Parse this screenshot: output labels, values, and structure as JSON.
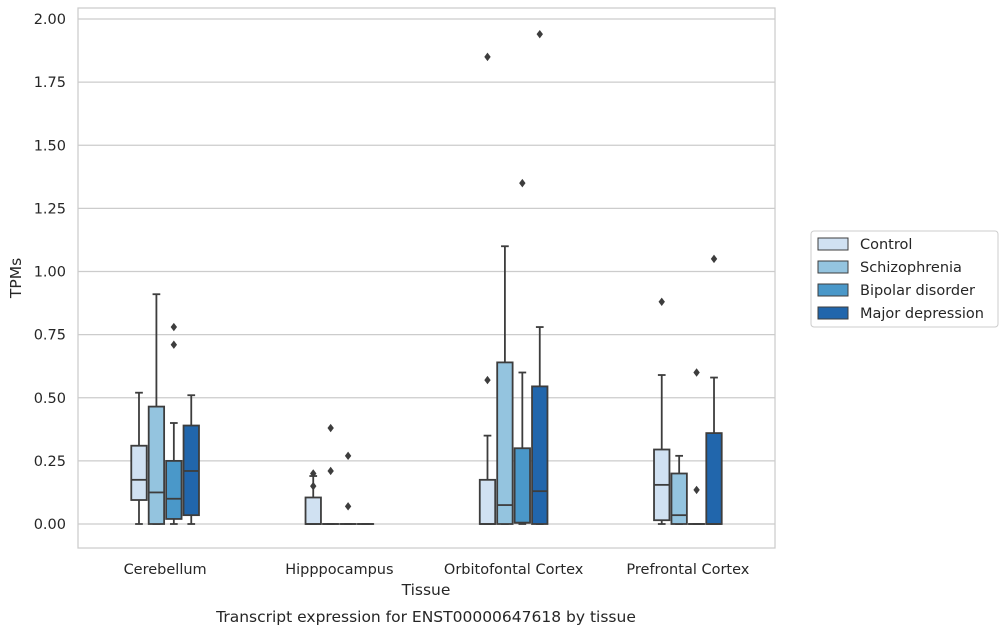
{
  "chart_data": {
    "type": "boxplot",
    "xlabel": "Tissue",
    "ylabel": "TPMs",
    "caption": "Transcript expression for ENST00000647618 by tissue",
    "ylim": [
      -0.1,
      2.02
    ],
    "yticks": [
      "0.00",
      "0.25",
      "0.50",
      "0.75",
      "1.00",
      "1.25",
      "1.50",
      "1.75",
      "2.00"
    ],
    "grid": "horizontal",
    "legend_position": "right-outside",
    "categories": [
      "Cerebellum",
      "Hipppocampus",
      "Orbitofontal Cortex",
      "Prefrontal Cortex"
    ],
    "series": [
      {
        "name": "Control",
        "color": "#d0e1f2",
        "boxes": [
          {
            "whislo": 0.0,
            "q1": 0.095,
            "med": 0.175,
            "q3": 0.31,
            "whishi": 0.52,
            "fliers": []
          },
          {
            "whislo": 0.0,
            "q1": 0.0,
            "med": 0.0,
            "q3": 0.105,
            "whishi": 0.19,
            "fliers": [
              0.15,
              0.2
            ]
          },
          {
            "whislo": 0.0,
            "q1": 0.0,
            "med": 0.0,
            "q3": 0.175,
            "whishi": 0.35,
            "fliers": [
              0.57,
              1.85
            ]
          },
          {
            "whislo": 0.0,
            "q1": 0.015,
            "med": 0.155,
            "q3": 0.295,
            "whishi": 0.59,
            "fliers": [
              0.88
            ]
          }
        ]
      },
      {
        "name": "Schizophrenia",
        "color": "#94c4df",
        "boxes": [
          {
            "whislo": 0.0,
            "q1": 0.0,
            "med": 0.125,
            "q3": 0.465,
            "whishi": 0.91,
            "fliers": []
          },
          {
            "whislo": 0.0,
            "q1": 0.0,
            "med": 0.0,
            "q3": 0.0,
            "whishi": 0.0,
            "fliers": [
              0.21,
              0.38
            ]
          },
          {
            "whislo": 0.0,
            "q1": 0.0,
            "med": 0.075,
            "q3": 0.64,
            "whishi": 1.1,
            "fliers": []
          },
          {
            "whislo": 0.0,
            "q1": 0.0,
            "med": 0.035,
            "q3": 0.2,
            "whishi": 0.27,
            "fliers": []
          }
        ]
      },
      {
        "name": "Bipolar disorder",
        "color": "#4a98c9",
        "boxes": [
          {
            "whislo": 0.0,
            "q1": 0.02,
            "med": 0.1,
            "q3": 0.25,
            "whishi": 0.4,
            "fliers": [
              0.71,
              0.78
            ]
          },
          {
            "whislo": 0.0,
            "q1": 0.0,
            "med": 0.0,
            "q3": 0.0,
            "whishi": 0.0,
            "fliers": [
              0.07,
              0.27
            ]
          },
          {
            "whislo": 0.0,
            "q1": 0.005,
            "med": 0.005,
            "q3": 0.3,
            "whishi": 0.6,
            "fliers": [
              1.35
            ]
          },
          {
            "whislo": 0.0,
            "q1": 0.0,
            "med": 0.0,
            "q3": 0.0,
            "whishi": 0.0,
            "fliers": [
              0.135,
              0.6
            ]
          }
        ]
      },
      {
        "name": "Major depression",
        "color": "#2166ac",
        "boxes": [
          {
            "whislo": 0.0,
            "q1": 0.035,
            "med": 0.21,
            "q3": 0.39,
            "whishi": 0.51,
            "fliers": []
          },
          {
            "whislo": 0.0,
            "q1": 0.0,
            "med": 0.0,
            "q3": 0.0,
            "whishi": 0.0,
            "fliers": []
          },
          {
            "whislo": 0.0,
            "q1": 0.0,
            "med": 0.13,
            "q3": 0.545,
            "whishi": 0.78,
            "fliers": [
              1.94
            ]
          },
          {
            "whislo": 0.0,
            "q1": 0.0,
            "med": 0.0,
            "q3": 0.36,
            "whishi": 0.58,
            "fliers": [
              1.05
            ]
          }
        ]
      }
    ]
  }
}
